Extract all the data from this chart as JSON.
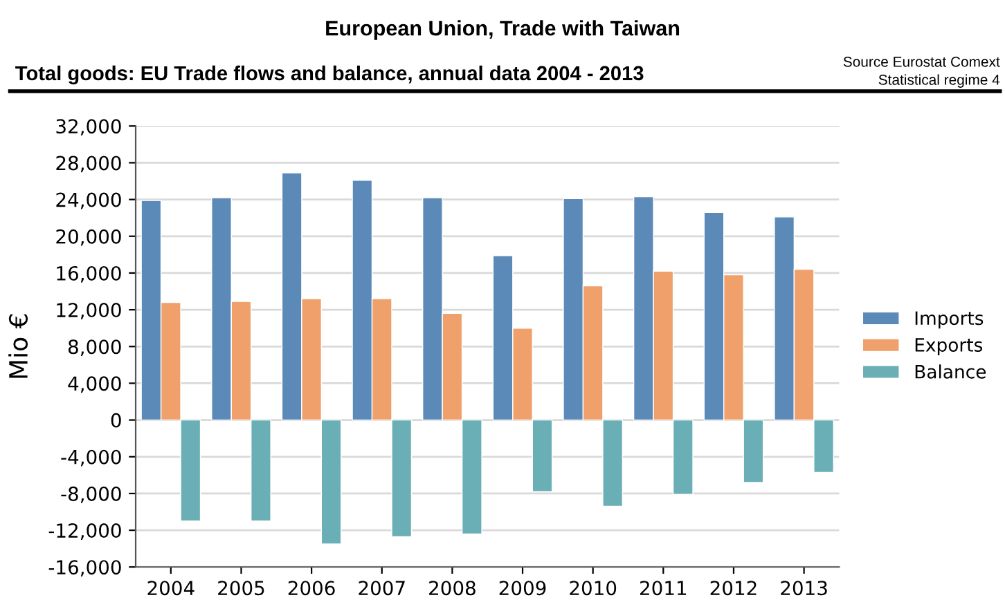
{
  "chart_data": {
    "type": "bar",
    "title": "European Union, Trade with Taiwan",
    "subtitle": "Total goods: EU Trade flows and balance, annual data 2004 - 2013",
    "annotations": [
      "Source Eurostat Comext",
      "Statistical regime 4"
    ],
    "ylabel": "Mio €",
    "categories": [
      "2004",
      "2005",
      "2006",
      "2007",
      "2008",
      "2009",
      "2010",
      "2011",
      "2012",
      "2013"
    ],
    "series": [
      {
        "name": "Imports",
        "color": "#5b8ab8",
        "values": [
          23900,
          24200,
          26900,
          26100,
          24200,
          17900,
          24100,
          24300,
          22600,
          22100
        ]
      },
      {
        "name": "Exports",
        "color": "#f0a06a",
        "values": [
          12800,
          12900,
          13200,
          13200,
          11600,
          10000,
          14600,
          16200,
          15800,
          16400
        ]
      },
      {
        "name": "Balance",
        "color": "#6aafb5",
        "values": [
          -11000,
          -11000,
          -13500,
          -12700,
          -12400,
          -7800,
          -9400,
          -8100,
          -6800,
          -5700
        ]
      }
    ],
    "ylim": [
      -16000,
      32000
    ],
    "yticks": [
      {
        "value": -16000,
        "label": "-16,000"
      },
      {
        "value": -12000,
        "label": "-12,000"
      },
      {
        "value": -8000,
        "label": "-8,000"
      },
      {
        "value": -4000,
        "label": "-4,000"
      },
      0,
      {
        "value": 4000,
        "label": "4,000"
      },
      {
        "value": 8000,
        "label": "8,000"
      },
      {
        "value": 12000,
        "label": "12,000"
      },
      {
        "value": 16000,
        "label": "16,000"
      },
      {
        "value": 20000,
        "label": "20,000"
      },
      {
        "value": 24000,
        "label": "24,000"
      },
      {
        "value": 28000,
        "label": "28,000"
      },
      {
        "value": 32000,
        "label": "32,000"
      }
    ],
    "grid": "y",
    "legend": "right"
  }
}
